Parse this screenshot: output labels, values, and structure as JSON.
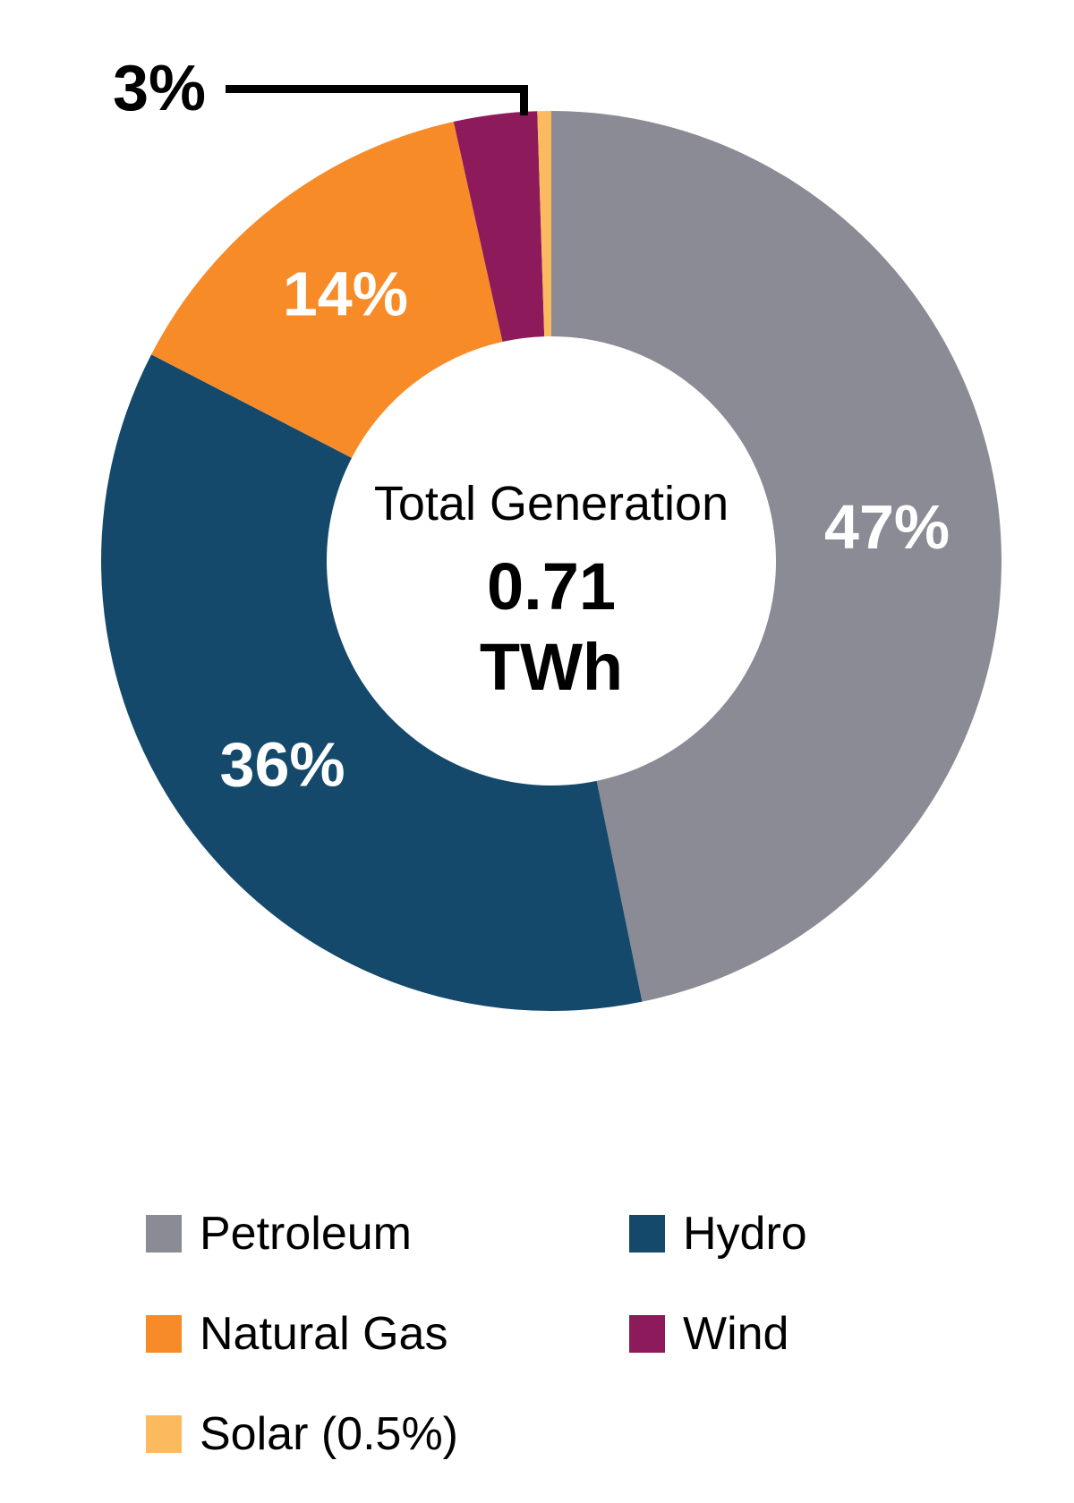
{
  "chart_data": {
    "type": "pie",
    "subtype": "donut",
    "title": "",
    "legend_position": "bottom",
    "start_angle_deg": 0,
    "direction": "clockwise",
    "donut_hole_ratio": 0.5,
    "center_label": {
      "title": "Total Generation",
      "value": "0.71",
      "unit": "TWh"
    },
    "series": [
      {
        "name": "Petroleum",
        "legend_label": "Petroleum",
        "value": 47,
        "display_pct": "47%",
        "color": "#8B8B95",
        "label_inside": true,
        "callout": false
      },
      {
        "name": "Hydro",
        "legend_label": "Hydro",
        "value": 36,
        "display_pct": "36%",
        "color": "#14496B",
        "label_inside": true,
        "callout": false
      },
      {
        "name": "Natural Gas",
        "legend_label": "Natural Gas",
        "value": 14,
        "display_pct": "14%",
        "color": "#F78B28",
        "label_inside": true,
        "callout": false
      },
      {
        "name": "Wind",
        "legend_label": "Wind",
        "value": 3,
        "display_pct": "3%",
        "color": "#8D1A5B",
        "label_inside": false,
        "callout": true
      },
      {
        "name": "Solar",
        "legend_label": "Solar (0.5%)",
        "value": 0.5,
        "display_pct": "0.5%",
        "color": "#FBBA5E",
        "label_inside": false,
        "callout": false
      }
    ]
  },
  "callout": {
    "label": "3%"
  },
  "colors": {
    "background": "#FFFFFF",
    "slice_label_text": "#FFFFFF",
    "text": "#000000",
    "callout_line": "#000000"
  }
}
